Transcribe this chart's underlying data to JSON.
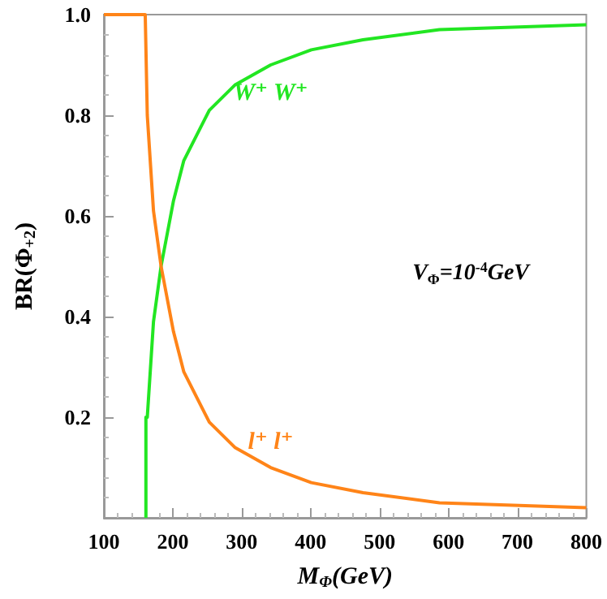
{
  "chart_data": {
    "type": "line",
    "xlabel": "M$_{Φ}$(GeV)",
    "ylabel": "BR(Φ$_{+2}$)",
    "annotations": [
      "V$_{Φ}$=10$^{-4}$GeV"
    ],
    "series": [
      {
        "name": "W⁺ W⁺",
        "color": "#22e622",
        "x": [
          161,
          161,
          163,
          172,
          183,
          201,
          216,
          253,
          290,
          342,
          401,
          476,
          587,
          800
        ],
        "values": [
          0,
          0.2,
          0.2,
          0.39,
          0.5,
          0.63,
          0.71,
          0.81,
          0.86,
          0.9,
          0.93,
          0.95,
          0.97,
          0.98
        ]
      },
      {
        "name": "l⁺ l⁺",
        "color": "#ff8418",
        "x": [
          100,
          160,
          161,
          163,
          172,
          183,
          201,
          216,
          253,
          290,
          342,
          401,
          476,
          587,
          800
        ],
        "values": [
          1,
          1,
          1,
          0.8,
          0.61,
          0.5,
          0.37,
          0.29,
          0.19,
          0.14,
          0.1,
          0.07,
          0.05,
          0.03,
          0.02
        ]
      }
    ],
    "xlim": [
      100,
      800
    ],
    "xticks": [
      100,
      200,
      300,
      400,
      500,
      600,
      700,
      800
    ],
    "ylim": [
      0,
      1
    ],
    "yticks": [
      {
        "value": 0.2,
        "label": "0.2"
      },
      {
        "value": 0.4,
        "label": "0.4"
      },
      {
        "value": 0.6,
        "label": "0.6"
      },
      {
        "value": 0.8,
        "label": "0.8"
      },
      {
        "value": 1,
        "label": "1.0"
      }
    ],
    "grid": false,
    "legend": false,
    "marker": "none",
    "line_style": "solid"
  }
}
